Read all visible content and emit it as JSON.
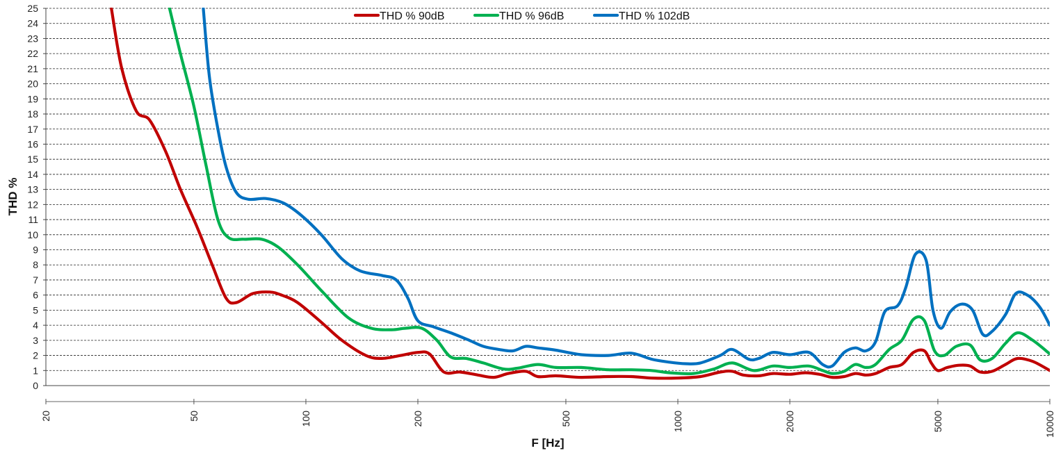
{
  "chart_data": {
    "type": "line",
    "title": "",
    "xlabel": "F [Hz]",
    "ylabel": "THD %",
    "x_scale": "log",
    "xlim": [
      20,
      10000
    ],
    "ylim": [
      0,
      25
    ],
    "grid": "horizontal dashed",
    "legend_position": "top",
    "x_ticks": [
      20,
      50,
      100,
      200,
      500,
      1000,
      2000,
      5000,
      10000
    ],
    "x_tick_labels": [
      "20",
      "50",
      "100",
      "200",
      "500",
      "1000",
      "2000",
      "5000",
      "10000"
    ],
    "y_ticks": [
      0,
      1,
      2,
      3,
      4,
      5,
      6,
      7,
      8,
      9,
      10,
      11,
      12,
      13,
      14,
      15,
      16,
      17,
      18,
      19,
      20,
      21,
      22,
      23,
      24,
      25
    ],
    "y_tick_labels": [
      "0",
      "1",
      "2",
      "3",
      "4",
      "5",
      "6",
      "7",
      "8",
      "9",
      "10",
      "11",
      "12",
      "13",
      "14",
      "15",
      "16",
      "17",
      "18",
      "19",
      "20",
      "21",
      "22",
      "23",
      "24",
      "25"
    ],
    "series": [
      {
        "name": "THD % 90dB",
        "color": "#c00000",
        "points": [
          [
            30,
            25
          ],
          [
            32,
            21
          ],
          [
            35,
            18.2
          ],
          [
            38,
            17.6
          ],
          [
            42,
            15.5
          ],
          [
            46,
            13
          ],
          [
            51,
            10.5
          ],
          [
            56,
            8
          ],
          [
            61,
            5.8
          ],
          [
            65,
            5.5
          ],
          [
            72,
            6.1
          ],
          [
            80,
            6.2
          ],
          [
            86,
            6
          ],
          [
            95,
            5.5
          ],
          [
            110,
            4.2
          ],
          [
            125,
            3
          ],
          [
            145,
            2
          ],
          [
            160,
            1.8
          ],
          [
            180,
            2
          ],
          [
            200,
            2.2
          ],
          [
            215,
            2.1
          ],
          [
            235,
            0.9
          ],
          [
            260,
            0.9
          ],
          [
            290,
            0.7
          ],
          [
            320,
            0.55
          ],
          [
            350,
            0.8
          ],
          [
            390,
            0.95
          ],
          [
            420,
            0.6
          ],
          [
            470,
            0.65
          ],
          [
            550,
            0.55
          ],
          [
            650,
            0.6
          ],
          [
            750,
            0.6
          ],
          [
            850,
            0.5
          ],
          [
            1000,
            0.5
          ],
          [
            1150,
            0.6
          ],
          [
            1300,
            0.9
          ],
          [
            1400,
            0.95
          ],
          [
            1500,
            0.7
          ],
          [
            1650,
            0.65
          ],
          [
            1800,
            0.8
          ],
          [
            2000,
            0.75
          ],
          [
            2200,
            0.85
          ],
          [
            2400,
            0.75
          ],
          [
            2600,
            0.55
          ],
          [
            2800,
            0.6
          ],
          [
            3000,
            0.8
          ],
          [
            3200,
            0.7
          ],
          [
            3400,
            0.8
          ],
          [
            3700,
            1.2
          ],
          [
            4000,
            1.4
          ],
          [
            4300,
            2.2
          ],
          [
            4600,
            2.3
          ],
          [
            4800,
            1.5
          ],
          [
            5000,
            1.0
          ],
          [
            5300,
            1.2
          ],
          [
            5700,
            1.35
          ],
          [
            6100,
            1.3
          ],
          [
            6500,
            0.9
          ],
          [
            7000,
            0.95
          ],
          [
            7600,
            1.4
          ],
          [
            8200,
            1.8
          ],
          [
            9000,
            1.6
          ],
          [
            10000,
            1.0
          ]
        ]
      },
      {
        "name": "THD % 96dB",
        "color": "#00b050",
        "points": [
          [
            43,
            25
          ],
          [
            46,
            22
          ],
          [
            50,
            18.5
          ],
          [
            54,
            14.5
          ],
          [
            58,
            11
          ],
          [
            62,
            9.8
          ],
          [
            68,
            9.7
          ],
          [
            76,
            9.7
          ],
          [
            84,
            9.2
          ],
          [
            95,
            8
          ],
          [
            110,
            6.3
          ],
          [
            130,
            4.5
          ],
          [
            150,
            3.8
          ],
          [
            170,
            3.7
          ],
          [
            185,
            3.8
          ],
          [
            205,
            3.8
          ],
          [
            225,
            3
          ],
          [
            245,
            1.9
          ],
          [
            270,
            1.8
          ],
          [
            300,
            1.5
          ],
          [
            340,
            1.1
          ],
          [
            370,
            1.15
          ],
          [
            420,
            1.4
          ],
          [
            470,
            1.2
          ],
          [
            550,
            1.2
          ],
          [
            650,
            1.05
          ],
          [
            750,
            1.05
          ],
          [
            850,
            1.0
          ],
          [
            950,
            0.85
          ],
          [
            1100,
            0.8
          ],
          [
            1250,
            1.1
          ],
          [
            1400,
            1.5
          ],
          [
            1600,
            1.0
          ],
          [
            1800,
            1.3
          ],
          [
            2000,
            1.2
          ],
          [
            2250,
            1.3
          ],
          [
            2450,
            1.0
          ],
          [
            2600,
            0.8
          ],
          [
            2800,
            0.95
          ],
          [
            3000,
            1.4
          ],
          [
            3200,
            1.2
          ],
          [
            3400,
            1.4
          ],
          [
            3700,
            2.4
          ],
          [
            4000,
            3.0
          ],
          [
            4300,
            4.4
          ],
          [
            4600,
            4.3
          ],
          [
            4900,
            2.3
          ],
          [
            5200,
            2.0
          ],
          [
            5600,
            2.6
          ],
          [
            6100,
            2.7
          ],
          [
            6500,
            1.7
          ],
          [
            7000,
            1.8
          ],
          [
            7600,
            2.8
          ],
          [
            8200,
            3.5
          ],
          [
            9000,
            3.0
          ],
          [
            10000,
            2.1
          ]
        ]
      },
      {
        "name": "THD % 102dB",
        "color": "#0070c0",
        "points": [
          [
            53,
            25
          ],
          [
            55,
            20.5
          ],
          [
            58,
            17
          ],
          [
            61,
            14.5
          ],
          [
            65,
            12.8
          ],
          [
            70,
            12.35
          ],
          [
            78,
            12.4
          ],
          [
            87,
            12.1
          ],
          [
            97,
            11.3
          ],
          [
            110,
            10
          ],
          [
            125,
            8.4
          ],
          [
            140,
            7.6
          ],
          [
            160,
            7.3
          ],
          [
            175,
            7.0
          ],
          [
            188,
            5.8
          ],
          [
            200,
            4.3
          ],
          [
            220,
            3.9
          ],
          [
            245,
            3.5
          ],
          [
            275,
            3.0
          ],
          [
            300,
            2.6
          ],
          [
            330,
            2.4
          ],
          [
            360,
            2.3
          ],
          [
            390,
            2.6
          ],
          [
            420,
            2.5
          ],
          [
            470,
            2.35
          ],
          [
            550,
            2.05
          ],
          [
            650,
            2.0
          ],
          [
            750,
            2.15
          ],
          [
            850,
            1.75
          ],
          [
            950,
            1.55
          ],
          [
            1050,
            1.45
          ],
          [
            1150,
            1.5
          ],
          [
            1300,
            2.0
          ],
          [
            1400,
            2.4
          ],
          [
            1550,
            1.75
          ],
          [
            1650,
            1.8
          ],
          [
            1800,
            2.2
          ],
          [
            2000,
            2.05
          ],
          [
            2250,
            2.2
          ],
          [
            2450,
            1.4
          ],
          [
            2600,
            1.3
          ],
          [
            2800,
            2.2
          ],
          [
            3000,
            2.5
          ],
          [
            3200,
            2.3
          ],
          [
            3400,
            2.9
          ],
          [
            3600,
            4.9
          ],
          [
            3900,
            5.3
          ],
          [
            4100,
            6.5
          ],
          [
            4350,
            8.7
          ],
          [
            4650,
            8.3
          ],
          [
            4850,
            5.0
          ],
          [
            5100,
            3.8
          ],
          [
            5400,
            4.9
          ],
          [
            5800,
            5.4
          ],
          [
            6200,
            5.0
          ],
          [
            6600,
            3.4
          ],
          [
            7000,
            3.6
          ],
          [
            7600,
            4.7
          ],
          [
            8100,
            6.1
          ],
          [
            8700,
            6.0
          ],
          [
            9400,
            5.2
          ],
          [
            10000,
            4.0
          ]
        ]
      }
    ]
  }
}
